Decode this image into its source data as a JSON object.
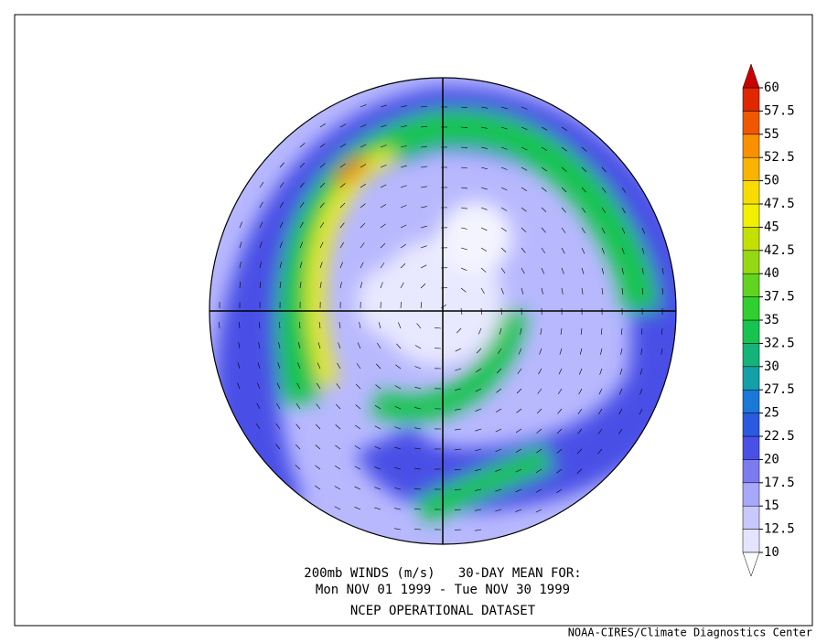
{
  "header": {
    "line1": "200mb WINDS (m/s)   30-DAY MEAN FOR:",
    "line2": "Mon NOV 01 1999 - Tue NOV 30 1999",
    "line3": "NCEP OPERATIONAL DATASET"
  },
  "footer": {
    "credit": "NOAA-CIRES/Climate Diagnostics Center"
  },
  "colorbar": {
    "ticks": [
      10,
      12.5,
      15,
      17.5,
      20,
      22.5,
      25,
      27.5,
      30,
      32.5,
      35,
      37.5,
      40,
      42.5,
      45,
      47.5,
      50,
      52.5,
      55,
      57.5,
      60
    ],
    "band_colors": [
      "#e4e4ff",
      "#c8c8ff",
      "#a8a8fa",
      "#7c7cf0",
      "#4a50e6",
      "#2a5ae0",
      "#1a78d6",
      "#14a0a8",
      "#14b478",
      "#18c450",
      "#30d030",
      "#60d420",
      "#96d814",
      "#c4e000",
      "#f0f000",
      "#f8dc00",
      "#f8b400",
      "#f89000",
      "#f05800",
      "#e02800"
    ],
    "under_color": "#ffffff",
    "over_color": "#c80000"
  }
}
